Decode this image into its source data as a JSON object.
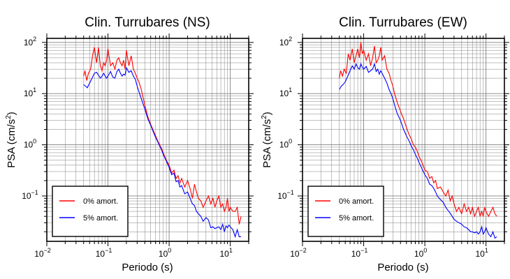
{
  "colors": {
    "amort_0": "#ff0000",
    "amort_5": "#0000ff",
    "grid": "#808080",
    "frame": "#000000"
  },
  "chart_data": [
    {
      "type": "line",
      "title": "Clin. Turrubares (NS)",
      "xlabel": "Periodo (s)",
      "ylabel_base": "PSA (cm/s",
      "ylabel_sup": "2",
      "ylabel_end": ")",
      "xscale": "log",
      "yscale": "log",
      "xlim": [
        0.01,
        20
      ],
      "ylim": [
        0.013,
        120
      ],
      "grid": true,
      "legend_position": "bottom-left",
      "x_ticks": [
        {
          "base": "10",
          "exp": "−2",
          "value": 0.01
        },
        {
          "base": "10",
          "exp": "−1",
          "value": 0.1
        },
        {
          "base": "10",
          "exp": "0",
          "value": 1
        },
        {
          "base": "10",
          "exp": "1",
          "value": 10
        }
      ],
      "y_ticks": [
        {
          "base": "10",
          "exp": "−1",
          "value": 0.1
        },
        {
          "base": "10",
          "exp": "0",
          "value": 1
        },
        {
          "base": "10",
          "exp": "1",
          "value": 10
        },
        {
          "base": "10",
          "exp": "2",
          "value": 100
        }
      ],
      "series": [
        {
          "name": "0% amort.",
          "color": "#ff0000",
          "x": [
            0.04,
            0.042,
            0.045,
            0.048,
            0.052,
            0.056,
            0.06,
            0.065,
            0.07,
            0.075,
            0.08,
            0.085,
            0.09,
            0.095,
            0.1,
            0.11,
            0.12,
            0.13,
            0.14,
            0.15,
            0.16,
            0.17,
            0.18,
            0.19,
            0.2,
            0.22,
            0.24,
            0.26,
            0.28,
            0.3,
            0.32,
            0.35,
            0.4,
            0.45,
            0.5,
            0.55,
            0.6,
            0.65,
            0.7,
            0.75,
            0.8,
            0.9,
            1.0,
            1.1,
            1.2,
            1.3,
            1.4,
            1.5,
            1.6,
            1.8,
            2.0,
            2.2,
            2.4,
            2.6,
            2.8,
            3.0,
            3.3,
            3.6,
            4.0,
            4.4,
            4.8,
            5.2,
            5.6,
            6.0,
            6.5,
            7.0,
            7.5,
            8.0,
            8.5,
            9.0,
            9.5,
            10.0,
            11.0,
            12.0,
            13.0,
            14.0,
            15.0
          ],
          "y": [
            22,
            28,
            18,
            25,
            30,
            55,
            80,
            40,
            80,
            35,
            28,
            40,
            35,
            45,
            75,
            35,
            40,
            30,
            45,
            50,
            40,
            35,
            45,
            30,
            70,
            35,
            55,
            30,
            25,
            20,
            17,
            12,
            6,
            3.5,
            2.5,
            1.9,
            1.5,
            1.2,
            1.0,
            0.85,
            0.7,
            0.5,
            0.4,
            0.28,
            0.32,
            0.22,
            0.25,
            0.18,
            0.22,
            0.15,
            0.2,
            0.14,
            0.09,
            0.17,
            0.12,
            0.09,
            0.08,
            0.06,
            0.08,
            0.1,
            0.07,
            0.09,
            0.06,
            0.08,
            0.1,
            0.06,
            0.07,
            0.05,
            0.06,
            0.09,
            0.05,
            0.06,
            0.05,
            0.05,
            0.06,
            0.028,
            0.04
          ]
        },
        {
          "name": "5% amort.",
          "color": "#0000ff",
          "x": [
            0.04,
            0.043,
            0.046,
            0.05,
            0.055,
            0.06,
            0.065,
            0.07,
            0.075,
            0.08,
            0.085,
            0.09,
            0.095,
            0.1,
            0.11,
            0.12,
            0.13,
            0.14,
            0.15,
            0.16,
            0.17,
            0.18,
            0.19,
            0.2,
            0.22,
            0.24,
            0.26,
            0.28,
            0.3,
            0.32,
            0.35,
            0.4,
            0.45,
            0.5,
            0.55,
            0.6,
            0.65,
            0.7,
            0.75,
            0.8,
            0.9,
            1.0,
            1.1,
            1.2,
            1.3,
            1.4,
            1.5,
            1.6,
            1.8,
            2.0,
            2.2,
            2.4,
            2.6,
            2.8,
            3.0,
            3.3,
            3.6,
            4.0,
            4.4,
            4.8,
            5.2,
            5.6,
            6.0,
            6.5,
            7.0,
            7.5,
            8.0,
            8.5,
            9.0,
            9.5,
            10.0,
            11.0,
            12.0,
            13.0,
            14.0,
            15.0
          ],
          "y": [
            15,
            14,
            13,
            16,
            20,
            25,
            26,
            23,
            20,
            22,
            25,
            22,
            20,
            22,
            27,
            21,
            20,
            27,
            30,
            25,
            22,
            24,
            23,
            32,
            26,
            28,
            22,
            19,
            14,
            11,
            8,
            5,
            3.2,
            2.4,
            1.8,
            1.4,
            1.15,
            0.95,
            0.8,
            0.65,
            0.48,
            0.36,
            0.26,
            0.28,
            0.19,
            0.2,
            0.15,
            0.16,
            0.11,
            0.12,
            0.09,
            0.07,
            0.065,
            0.05,
            0.045,
            0.04,
            0.032,
            0.038,
            0.034,
            0.024,
            0.025,
            0.023,
            0.024,
            0.025,
            0.022,
            0.028,
            0.02,
            0.026,
            0.024,
            0.027,
            0.025,
            0.022,
            0.016,
            0.022,
            0.016,
            0.016
          ]
        }
      ]
    },
    {
      "type": "line",
      "title": "Clin. Turrubares (EW)",
      "xlabel": "Periodo (s)",
      "ylabel_base": "PSA (cm/s",
      "ylabel_sup": "2",
      "ylabel_end": ")",
      "xscale": "log",
      "yscale": "log",
      "xlim": [
        0.01,
        20
      ],
      "ylim": [
        0.013,
        120
      ],
      "grid": true,
      "legend_position": "bottom-left",
      "x_ticks": [
        {
          "base": "10",
          "exp": "−2",
          "value": 0.01
        },
        {
          "base": "10",
          "exp": "−1",
          "value": 0.1
        },
        {
          "base": "10",
          "exp": "0",
          "value": 1
        },
        {
          "base": "10",
          "exp": "1",
          "value": 10
        }
      ],
      "y_ticks": [
        {
          "base": "10",
          "exp": "−1",
          "value": 0.1
        },
        {
          "base": "10",
          "exp": "0",
          "value": 1
        },
        {
          "base": "10",
          "exp": "1",
          "value": 10
        },
        {
          "base": "10",
          "exp": "2",
          "value": 100
        }
      ],
      "series": [
        {
          "name": "0% amort.",
          "color": "#ff0000",
          "x": [
            0.04,
            0.042,
            0.045,
            0.048,
            0.052,
            0.056,
            0.06,
            0.065,
            0.07,
            0.075,
            0.08,
            0.085,
            0.09,
            0.095,
            0.1,
            0.11,
            0.12,
            0.13,
            0.14,
            0.15,
            0.16,
            0.17,
            0.18,
            0.19,
            0.2,
            0.22,
            0.24,
            0.26,
            0.28,
            0.3,
            0.32,
            0.35,
            0.4,
            0.45,
            0.5,
            0.55,
            0.6,
            0.65,
            0.7,
            0.75,
            0.8,
            0.9,
            1.0,
            1.1,
            1.2,
            1.3,
            1.4,
            1.5,
            1.6,
            1.8,
            2.0,
            2.2,
            2.4,
            2.6,
            2.8,
            3.0,
            3.3,
            3.6,
            4.0,
            4.4,
            4.8,
            5.2,
            5.6,
            6.0,
            6.5,
            7.0,
            7.5,
            8.0,
            8.5,
            9.0,
            9.5,
            10.0,
            11.0,
            12.0,
            13.0,
            14.0,
            15.0
          ],
          "y": [
            20,
            28,
            22,
            30,
            25,
            60,
            45,
            75,
            40,
            55,
            75,
            50,
            100,
            60,
            70,
            45,
            60,
            35,
            50,
            85,
            40,
            45,
            55,
            80,
            45,
            55,
            30,
            25,
            18,
            14,
            10,
            7,
            4.5,
            3.2,
            2.2,
            1.6,
            1.3,
            1.0,
            0.9,
            0.75,
            0.6,
            0.45,
            0.32,
            0.3,
            0.22,
            0.24,
            0.18,
            0.2,
            0.14,
            0.15,
            0.12,
            0.1,
            0.13,
            0.08,
            0.1,
            0.07,
            0.05,
            0.06,
            0.045,
            0.07,
            0.05,
            0.06,
            0.045,
            0.06,
            0.04,
            0.05,
            0.06,
            0.04,
            0.05,
            0.04,
            0.06,
            0.05,
            0.04,
            0.05,
            0.06,
            0.045,
            0.04
          ]
        },
        {
          "name": "5% amort.",
          "color": "#0000ff",
          "x": [
            0.04,
            0.043,
            0.046,
            0.05,
            0.055,
            0.06,
            0.065,
            0.07,
            0.075,
            0.08,
            0.085,
            0.09,
            0.095,
            0.1,
            0.11,
            0.12,
            0.13,
            0.14,
            0.15,
            0.16,
            0.17,
            0.18,
            0.19,
            0.2,
            0.22,
            0.24,
            0.26,
            0.28,
            0.3,
            0.32,
            0.35,
            0.4,
            0.45,
            0.5,
            0.55,
            0.6,
            0.65,
            0.7,
            0.75,
            0.8,
            0.9,
            1.0,
            1.1,
            1.2,
            1.3,
            1.4,
            1.5,
            1.6,
            1.8,
            2.0,
            2.2,
            2.4,
            2.6,
            2.8,
            3.0,
            3.3,
            3.6,
            4.0,
            4.4,
            4.8,
            5.2,
            5.6,
            6.0,
            6.5,
            7.0,
            7.5,
            8.0,
            8.5,
            9.0,
            9.5,
            10.0,
            11.0,
            12.0,
            13.0,
            14.0,
            15.0
          ],
          "y": [
            12,
            14,
            15,
            17,
            22,
            28,
            35,
            30,
            38,
            32,
            30,
            38,
            33,
            30,
            34,
            26,
            28,
            30,
            38,
            27,
            30,
            24,
            28,
            25,
            20,
            16,
            12,
            10,
            8,
            6,
            4.2,
            3.0,
            2.0,
            1.5,
            1.2,
            0.95,
            0.8,
            0.65,
            0.55,
            0.46,
            0.34,
            0.26,
            0.22,
            0.17,
            0.16,
            0.14,
            0.12,
            0.1,
            0.085,
            0.075,
            0.06,
            0.052,
            0.046,
            0.04,
            0.035,
            0.032,
            0.03,
            0.028,
            0.025,
            0.024,
            0.022,
            0.02,
            0.02,
            0.019,
            0.02,
            0.018,
            0.02,
            0.025,
            0.018,
            0.02,
            0.024,
            0.018,
            0.016,
            0.02,
            0.015,
            0.016
          ]
        }
      ]
    }
  ]
}
